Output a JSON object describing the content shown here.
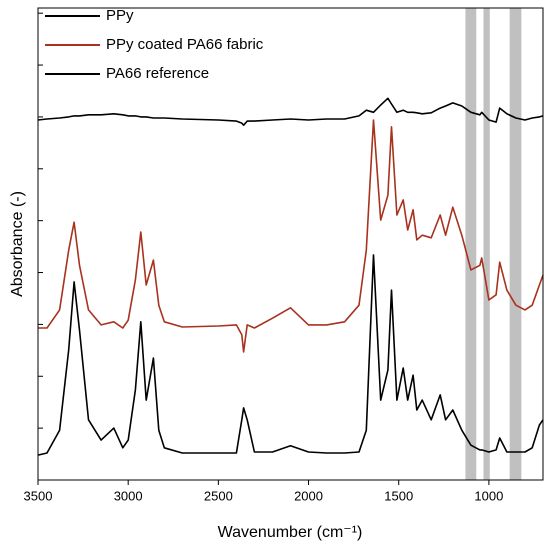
{
  "chart_data": {
    "type": "line",
    "xlabel": "Wavenumber (cm⁻¹)",
    "ylabel": "Absorbance (-)",
    "x": [
      3500,
      3450,
      3380,
      3330,
      3300,
      3270,
      3220,
      3150,
      3080,
      3030,
      3000,
      2960,
      2930,
      2900,
      2860,
      2830,
      2800,
      2700,
      2500,
      2400,
      2370,
      2360,
      2340,
      2300,
      2200,
      2100,
      2000,
      1900,
      1800,
      1720,
      1680,
      1640,
      1600,
      1560,
      1540,
      1510,
      1475,
      1450,
      1420,
      1400,
      1370,
      1320,
      1270,
      1240,
      1200,
      1150,
      1100,
      1050,
      1040,
      1000,
      960,
      940,
      900,
      850,
      800,
      760,
      720,
      700
    ],
    "series": [
      {
        "name": "PPy",
        "color": "#000000",
        "values": [
          6.94,
          6.96,
          6.98,
          7.0,
          7.02,
          7.02,
          7.04,
          7.04,
          7.06,
          7.04,
          7.02,
          7.02,
          7.0,
          7.0,
          6.98,
          6.98,
          6.98,
          6.96,
          6.94,
          6.92,
          6.88,
          6.84,
          6.92,
          6.92,
          6.94,
          6.96,
          6.94,
          6.96,
          6.96,
          7.02,
          7.13,
          7.09,
          7.23,
          7.36,
          7.25,
          7.09,
          7.13,
          7.09,
          7.09,
          7.08,
          7.06,
          7.08,
          7.17,
          7.21,
          7.27,
          7.21,
          7.09,
          7.04,
          7.09,
          6.94,
          6.9,
          7.17,
          7.06,
          6.98,
          6.94,
          6.98,
          7.0,
          7.02
        ]
      },
      {
        "name": "PPy coated PA66 fabric",
        "color": "#a8321e",
        "values": [
          2.93,
          2.93,
          3.28,
          4.43,
          4.97,
          4.14,
          3.28,
          2.99,
          3.05,
          2.93,
          3.08,
          3.86,
          4.78,
          3.76,
          4.24,
          3.37,
          3.05,
          2.95,
          2.97,
          2.99,
          2.8,
          2.47,
          2.99,
          2.93,
          3.12,
          3.32,
          2.99,
          2.99,
          3.05,
          3.37,
          4.43,
          6.94,
          5.01,
          5.49,
          6.81,
          5.11,
          5.4,
          4.82,
          5.21,
          4.63,
          4.72,
          4.67,
          5.11,
          4.72,
          5.26,
          4.72,
          4.05,
          4.14,
          4.28,
          3.47,
          3.57,
          4.2,
          3.66,
          3.37,
          3.28,
          3.37,
          3.76,
          3.95
        ]
      },
      {
        "name": "PA66 reference",
        "color": "#000000",
        "values": [
          0.48,
          0.52,
          0.96,
          2.51,
          3.82,
          2.89,
          1.16,
          0.77,
          1.0,
          0.62,
          0.77,
          1.74,
          3.05,
          1.54,
          2.35,
          0.96,
          0.62,
          0.52,
          0.52,
          0.52,
          1.16,
          1.39,
          1.16,
          0.54,
          0.54,
          0.66,
          0.54,
          0.52,
          0.52,
          0.54,
          0.96,
          4.34,
          1.54,
          2.12,
          3.66,
          1.54,
          2.16,
          1.54,
          2.02,
          1.35,
          1.54,
          1.16,
          1.64,
          1.16,
          1.35,
          0.96,
          0.67,
          0.58,
          0.58,
          0.54,
          0.58,
          0.81,
          0.54,
          0.54,
          0.54,
          0.62,
          1.06,
          1.16
        ]
      }
    ],
    "bands": [
      [
        1130,
        1070
      ],
      [
        1030,
        995
      ],
      [
        885,
        820
      ]
    ],
    "band_color": "#c0c0c0",
    "xlim": [
      3500,
      700
    ],
    "xticks": [
      3500,
      3000,
      2500,
      2000,
      1500,
      1000
    ],
    "ylim": [
      0,
      9.1
    ],
    "yticks": [
      1,
      2,
      3,
      4,
      5,
      6,
      7,
      8,
      9
    ]
  }
}
